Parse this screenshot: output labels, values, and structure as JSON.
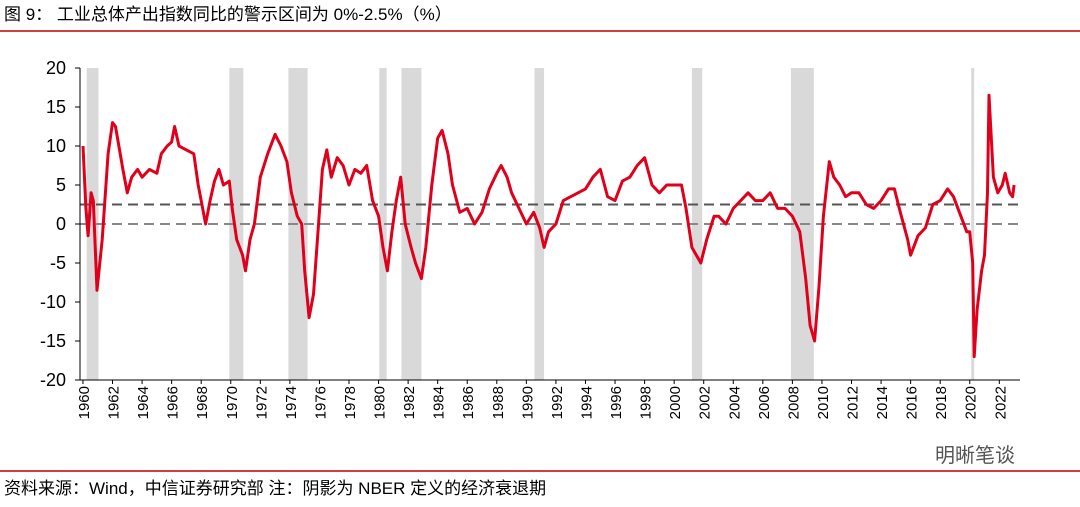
{
  "chart_data": {
    "type": "line",
    "title": "图 9：  工业总体产出指数同比的警示区间为 0%-2.5%（%）",
    "source": "资料来源：Wind，中信证券研究部    注：阴影为 NBER 定义的经济衰退期",
    "watermark": "明晰笔谈",
    "color": "#e0001b",
    "recession_color": "#d9d9d9",
    "reference_lines": [
      0,
      2.5
    ],
    "recessions": [
      [
        1960.25,
        1961.05
      ],
      [
        1969.9,
        1970.85
      ],
      [
        1973.9,
        1975.2
      ],
      [
        1980.05,
        1980.55
      ],
      [
        1981.55,
        1982.9
      ],
      [
        1990.55,
        1991.2
      ],
      [
        2001.2,
        2001.9
      ],
      [
        2007.9,
        2009.45
      ],
      [
        2020.1,
        2020.3
      ]
    ],
    "x": [
      1960.0,
      1960.2,
      1960.35,
      1960.55,
      1960.7,
      1960.95,
      1961.3,
      1961.7,
      1962.0,
      1962.2,
      1962.7,
      1963.0,
      1963.3,
      1963.7,
      1964.0,
      1964.5,
      1965.0,
      1965.3,
      1965.7,
      1966.0,
      1966.2,
      1966.5,
      1967.0,
      1967.5,
      1967.8,
      1968.0,
      1968.3,
      1968.6,
      1968.9,
      1969.2,
      1969.5,
      1969.9,
      1970.1,
      1970.4,
      1970.8,
      1971.0,
      1971.3,
      1971.6,
      1972.0,
      1972.5,
      1973.0,
      1973.4,
      1973.8,
      1974.1,
      1974.5,
      1974.8,
      1975.0,
      1975.3,
      1975.6,
      1975.9,
      1976.2,
      1976.5,
      1976.8,
      1977.2,
      1977.6,
      1978.0,
      1978.4,
      1978.8,
      1979.2,
      1979.6,
      1980.0,
      1980.3,
      1980.6,
      1980.9,
      1981.2,
      1981.5,
      1981.8,
      1982.2,
      1982.5,
      1982.9,
      1983.2,
      1983.6,
      1984.0,
      1984.3,
      1984.7,
      1985.0,
      1985.5,
      1986.0,
      1986.5,
      1987.0,
      1987.5,
      1988.0,
      1988.3,
      1988.7,
      1989.0,
      1989.5,
      1990.0,
      1990.5,
      1990.9,
      1991.2,
      1991.5,
      1992.0,
      1992.5,
      1993.0,
      1993.5,
      1994.0,
      1994.5,
      1995.0,
      1995.5,
      1996.0,
      1996.5,
      1997.0,
      1997.5,
      1998.0,
      1998.5,
      1999.0,
      1999.5,
      2000.0,
      2000.5,
      2000.8,
      2001.2,
      2001.8,
      2002.2,
      2002.7,
      2003.0,
      2003.5,
      2004.0,
      2004.5,
      2005.0,
      2005.5,
      2006.0,
      2006.5,
      2007.0,
      2007.5,
      2008.0,
      2008.5,
      2008.9,
      2009.2,
      2009.5,
      2009.8,
      2010.1,
      2010.5,
      2010.8,
      2011.2,
      2011.6,
      2012.0,
      2012.5,
      2013.0,
      2013.5,
      2014.0,
      2014.5,
      2014.9,
      2015.3,
      2015.8,
      2016.0,
      2016.5,
      2017.0,
      2017.5,
      2018.0,
      2018.5,
      2018.9,
      2019.3,
      2019.8,
      2020.0,
      2020.2,
      2020.3,
      2020.5,
      2020.8,
      2021.0,
      2021.2,
      2021.3,
      2021.6,
      2021.9,
      2022.2,
      2022.4,
      2022.7,
      2022.9,
      2023.0
    ],
    "values": [
      10,
      2,
      -1.5,
      4,
      3,
      -8.5,
      -2,
      9,
      13,
      12.5,
      7,
      4,
      6,
      7,
      6,
      7,
      6.5,
      9,
      10,
      10.5,
      12.5,
      10,
      9.5,
      9,
      5,
      3,
      0,
      3,
      5.5,
      7,
      5,
      5.5,
      2,
      -2,
      -4,
      -6,
      -2,
      0,
      6,
      9,
      11.5,
      10,
      8,
      4,
      1,
      0,
      -6,
      -12,
      -9,
      -1,
      7,
      9.5,
      6,
      8.5,
      7.5,
      5,
      7,
      6.5,
      7.5,
      3,
      1,
      -3,
      -6,
      -1,
      3,
      6,
      0,
      -3,
      -5,
      -7,
      -3,
      5,
      11,
      12,
      9,
      5,
      1.5,
      2,
      0,
      1.5,
      4.5,
      6.5,
      7.5,
      6,
      4,
      2,
      0,
      1.5,
      -0.5,
      -3,
      -1,
      0,
      3,
      3.5,
      4,
      4.5,
      6,
      7,
      3.5,
      3,
      5.5,
      6,
      7.5,
      8.5,
      5,
      4,
      5,
      5,
      5,
      2,
      -3,
      -5,
      -2,
      1,
      1,
      0,
      2,
      3,
      4,
      3,
      3,
      4,
      2,
      2,
      1,
      -1,
      -7,
      -13,
      -15,
      -8,
      1,
      8,
      6,
      5,
      3.5,
      4,
      4,
      2.5,
      2,
      3,
      4.5,
      4.5,
      1.5,
      -2,
      -4,
      -1.5,
      -0.5,
      2.5,
      3,
      4.5,
      3.5,
      1.5,
      -1,
      -1,
      -5,
      -17,
      -11,
      -6,
      -4,
      4,
      16.5,
      6,
      4,
      5,
      6.5,
      4,
      3.5,
      5
    ],
    "xlim": [
      1959.8,
      2023.4
    ],
    "ylim": [
      -20,
      20
    ],
    "yticks": [
      -20,
      -15,
      -10,
      -5,
      0,
      5,
      10,
      15,
      20
    ],
    "xticks": [
      1960,
      1962,
      1964,
      1966,
      1968,
      1970,
      1972,
      1974,
      1976,
      1978,
      1980,
      1982,
      1984,
      1986,
      1988,
      1990,
      1992,
      1994,
      1996,
      1998,
      2000,
      2002,
      2004,
      2006,
      2008,
      2010,
      2012,
      2014,
      2016,
      2018,
      2020,
      2022
    ]
  }
}
